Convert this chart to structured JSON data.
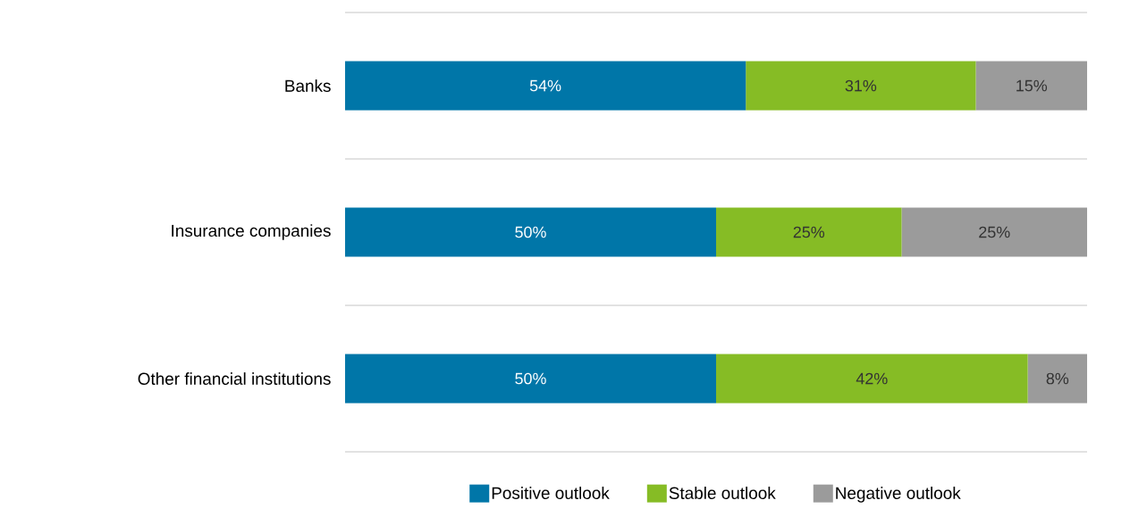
{
  "chart_data": {
    "type": "bar",
    "orientation": "horizontal",
    "stacked": true,
    "categories": [
      "Banks",
      "Insurance companies",
      "Other financial institutions"
    ],
    "series": [
      {
        "name": "Positive outlook",
        "color": "#0076a8",
        "values": [
          54,
          50,
          50
        ],
        "value_labels": [
          "54%",
          "50%",
          "50%"
        ]
      },
      {
        "name": "Stable outlook",
        "color": "#86bc25",
        "values": [
          31,
          25,
          42
        ],
        "value_labels": [
          "31%",
          "25%",
          "42%"
        ]
      },
      {
        "name": "Negative outlook",
        "color": "#9b9b9b",
        "values": [
          15,
          25,
          8
        ],
        "value_labels": [
          "15%",
          "25%",
          "8%"
        ]
      }
    ],
    "grid": "y",
    "legend": "bottom"
  }
}
